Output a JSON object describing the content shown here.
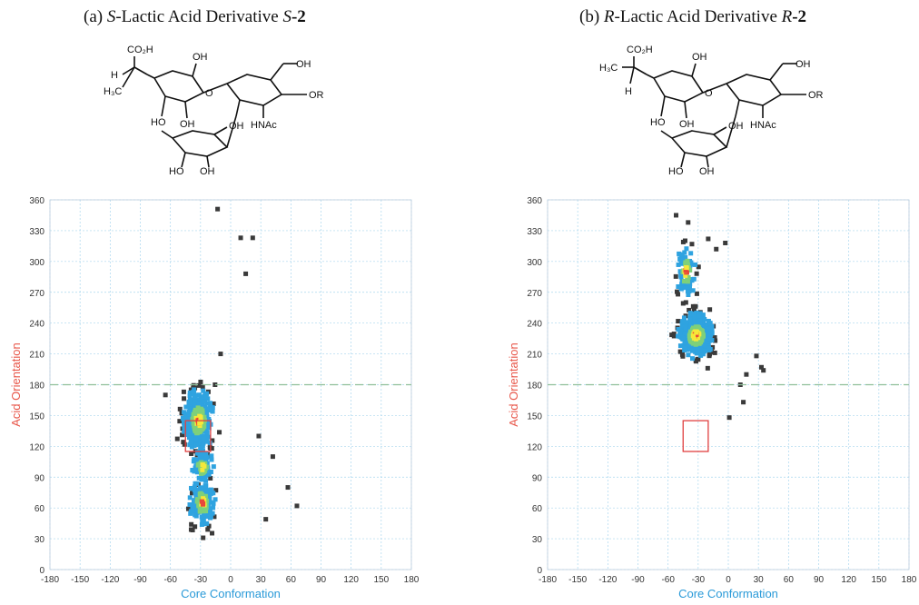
{
  "panels": [
    {
      "title_label": "(a) ",
      "title_config": "S",
      "title_mid": "-Lactic Acid Derivative ",
      "title_config2": "S",
      "title_num": "-2",
      "structure_labels": {
        "acid": "CO₂H",
        "h": "H",
        "methyl": "H₃C",
        "nhac": "HNAc",
        "or": "OR",
        "oh": "OH",
        "ho": "HO",
        "o": "O"
      }
    },
    {
      "title_label": "(b) ",
      "title_config": "R",
      "title_mid": "-Lactic Acid Derivative ",
      "title_config2": "R",
      "title_num": "-2",
      "structure_labels": {
        "acid": "CO₂H",
        "h": "H",
        "methyl": "H₃C",
        "nhac": "HNAc",
        "or": "OR",
        "oh": "OH",
        "ho": "HO",
        "o": "O"
      }
    }
  ],
  "colors": {
    "dense_core": "#f5e83a",
    "hot": "#e8473a",
    "mid": "#2fa3e0",
    "sparse": "#3a3a3a",
    "threshold_line": "#8fbf9a",
    "box": "#e04040",
    "xlabel": "#2a9ad8",
    "ylabel": "#e8574a",
    "grid": "#a9d6ee"
  },
  "chart_data": [
    {
      "type": "scatter",
      "title": "(a) S-Lactic Acid Derivative S-2",
      "xlabel": "Core Conformation",
      "ylabel": "Acid Orientation",
      "xlim": [
        -180,
        180
      ],
      "ylim": [
        0,
        360
      ],
      "xticks": [
        "-180",
        "-150",
        "-120",
        "-90",
        "-60",
        "-30",
        "0",
        "30",
        "60",
        "90",
        "120",
        "150",
        "180"
      ],
      "yticks": [
        "0",
        "30",
        "60",
        "90",
        "120",
        "150",
        "180",
        "210",
        "240",
        "270",
        "300",
        "330",
        "360"
      ],
      "grid": true,
      "threshold_y": 180,
      "highlight_box": {
        "x": [
          -45,
          -20
        ],
        "y": [
          115,
          145
        ]
      },
      "clusters": [
        {
          "center": [
            -32,
            145
          ],
          "spread": [
            14,
            28
          ],
          "count": 420
        },
        {
          "center": [
            -28,
            65
          ],
          "spread": [
            12,
            22
          ],
          "count": 160
        },
        {
          "center": [
            -28,
            100
          ],
          "spread": [
            10,
            15
          ],
          "count": 80
        }
      ],
      "outliers": [
        [
          -13,
          351
        ],
        [
          10,
          323
        ],
        [
          22,
          323
        ],
        [
          15,
          288
        ],
        [
          57,
          80
        ],
        [
          66,
          62
        ],
        [
          35,
          49
        ],
        [
          42,
          110
        ],
        [
          28,
          130
        ],
        [
          -65,
          170
        ],
        [
          -10,
          210
        ]
      ]
    },
    {
      "type": "scatter",
      "title": "(b) R-Lactic Acid Derivative R-2",
      "xlabel": "Core Conformation",
      "ylabel": "Acid Orientation",
      "xlim": [
        -180,
        180
      ],
      "ylim": [
        0,
        360
      ],
      "xticks": [
        "-180",
        "-150",
        "-120",
        "-90",
        "-60",
        "-30",
        "0",
        "30",
        "60",
        "90",
        "120",
        "150",
        "180"
      ],
      "yticks": [
        "0",
        "30",
        "60",
        "90",
        "120",
        "150",
        "180",
        "210",
        "240",
        "270",
        "300",
        "330",
        "360"
      ],
      "grid": true,
      "threshold_y": 180,
      "highlight_box": {
        "x": [
          -45,
          -20
        ],
        "y": [
          115,
          145
        ]
      },
      "clusters": [
        {
          "center": [
            -32,
            228
          ],
          "spread": [
            16,
            20
          ],
          "count": 480
        },
        {
          "center": [
            -42,
            290
          ],
          "spread": [
            9,
            25
          ],
          "count": 90
        }
      ],
      "outliers": [
        [
          -52,
          345
        ],
        [
          -40,
          338
        ],
        [
          -20,
          322
        ],
        [
          -12,
          312
        ],
        [
          -3,
          318
        ],
        [
          28,
          208
        ],
        [
          33,
          197
        ],
        [
          35,
          194
        ],
        [
          12,
          180
        ],
        [
          15,
          163
        ],
        [
          1,
          148
        ],
        [
          18,
          190
        ]
      ]
    }
  ]
}
